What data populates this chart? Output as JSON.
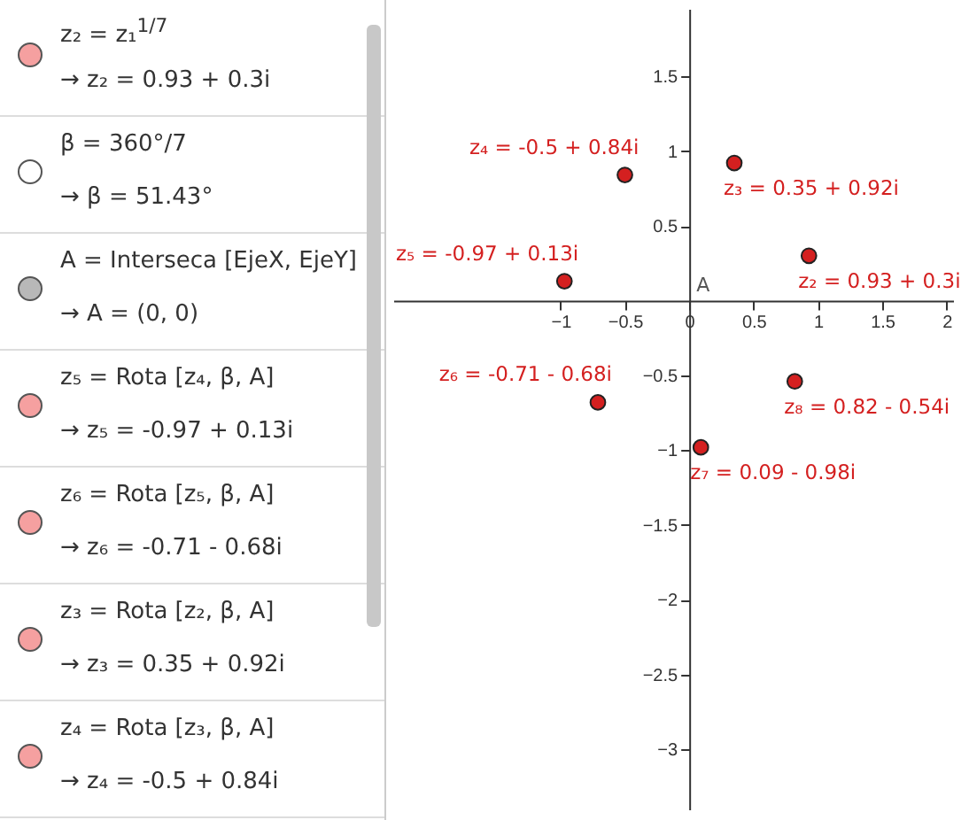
{
  "chart_data": [
    {
      "type": "other",
      "annotations": [
        "z₂ = z₁$^{1/7}$",
        "→ z₂ = 0.93 + 0.3i",
        "β = 360°/7",
        "→ β = 51.43°",
        "A = Interseca [EjeX, EjeY]",
        "→ A = (0, 0)",
        "z₅ = Rota [z₄, β, A]",
        "→ z₅ = -0.97 + 0.13i",
        "z₆ = Rota [z₅, β, A]",
        "→ z₆ = -0.71 - 0.68i",
        "z₃ = Rota [z₂, β, A]",
        "→ z₃ = 0.35 + 0.92i",
        "z₄ = Rota [z₃, β, A]",
        "→ z₄ = -0.5 + 0.84i"
      ]
    },
    {
      "type": "scatter",
      "x": [
        0.93,
        0.35,
        -0.5,
        -0.97,
        -0.71,
        0.09,
        0.82
      ],
      "values": [
        0.3,
        0.92,
        0.84,
        0.13,
        -0.68,
        -0.98,
        -0.54
      ],
      "value_labels": [
        "z₂ = 0.93 + 0.3i",
        "z₃ = 0.35 + 0.92i",
        "z₄ = -0.5 + 0.84i",
        "z₅ = -0.97 + 0.13i",
        "z₆ = -0.71 - 0.68i",
        "z₇ = 0.09 - 0.98i",
        "z₈ = 0.82 - 0.54i"
      ],
      "color": "#d42020",
      "marker": "circle",
      "grid": false,
      "xlim": [
        -2.3,
        2.05
      ],
      "ylim": [
        -3.4,
        1.95
      ],
      "xticks": [
        -1,
        -0.5,
        0,
        0.5,
        1,
        1.5,
        2
      ],
      "yticks": [
        -3,
        -2.5,
        -2,
        -1.5,
        -1,
        -0.5,
        0.5,
        1,
        1.5
      ],
      "annotations": [
        "A"
      ]
    }
  ]
}
